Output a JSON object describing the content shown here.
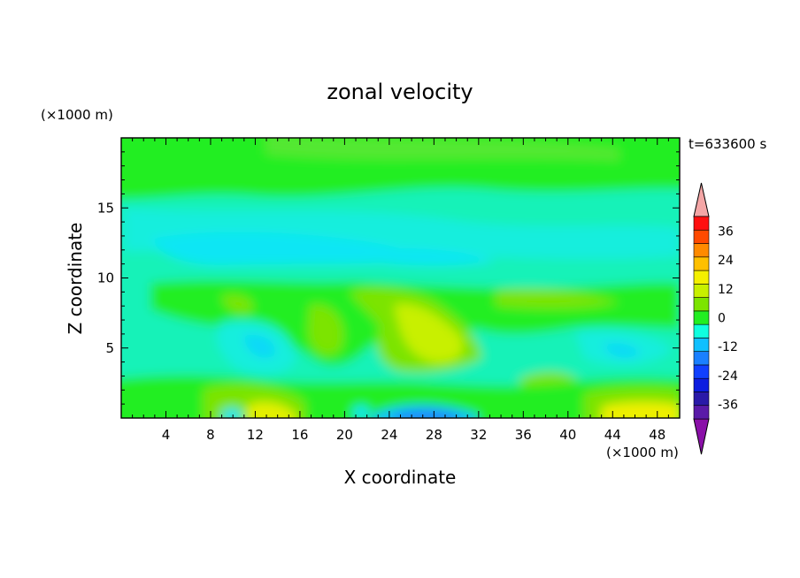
{
  "chart_data": {
    "type": "heatmap",
    "title": "zonal velocity",
    "xlabel": "X coordinate",
    "ylabel": "Z coordinate",
    "x_unit": "(×1000 m)",
    "y_unit": "(×1000 m)",
    "time_label": "t=633600 s",
    "xlim": [
      0,
      50
    ],
    "ylim": [
      0,
      20
    ],
    "x_ticks": [
      4,
      8,
      12,
      16,
      20,
      24,
      28,
      32,
      36,
      40,
      44,
      48
    ],
    "y_ticks": [
      5,
      10,
      15
    ],
    "colorbar": {
      "ticks": [
        36,
        24,
        12,
        0,
        -12,
        -24,
        -36
      ],
      "levels": [
        -42,
        -36,
        -30,
        -24,
        -18,
        -12,
        -6,
        0,
        6,
        12,
        18,
        24,
        30,
        36,
        42
      ],
      "colors": [
        "#5a1aa8",
        "#2a1aa8",
        "#0d1de0",
        "#1040ff",
        "#1a80ff",
        "#10c0ff",
        "#10ffdf",
        "#22ee22",
        "#7ce400",
        "#c8f000",
        "#f4f000",
        "#ffc000",
        "#ff8a00",
        "#ff4a00",
        "#ff1010"
      ],
      "over_color": "#f4a6a6",
      "under_color": "#8a10a8"
    },
    "field_description_values": {
      "background_value": -3,
      "features": [
        {
          "region": "top band",
          "x": [
            0,
            50
          ],
          "z": [
            16,
            20
          ],
          "value": 2
        },
        {
          "region": "upper teal",
          "x": [
            0,
            50
          ],
          "z": [
            10,
            16
          ],
          "value": -4
        },
        {
          "region": "cyan band",
          "x": [
            8,
            30
          ],
          "z": [
            11.5,
            14
          ],
          "value": -9
        },
        {
          "region": "mid green",
          "x": [
            4,
            50
          ],
          "z": [
            6,
            10
          ],
          "value": 2
        },
        {
          "region": "central yellow",
          "x": [
            24,
            33
          ],
          "z": [
            4,
            8
          ],
          "value": 10
        },
        {
          "region": "bottom yellow left",
          "x": [
            12,
            16
          ],
          "z": [
            0,
            1.5
          ],
          "value": 12
        },
        {
          "region": "bottom yellow right",
          "x": [
            43,
            50
          ],
          "z": [
            0,
            1.5
          ],
          "value": 12
        },
        {
          "region": "bottom blue",
          "x": [
            24,
            32
          ],
          "z": [
            0,
            1
          ],
          "value": -16
        }
      ]
    }
  }
}
